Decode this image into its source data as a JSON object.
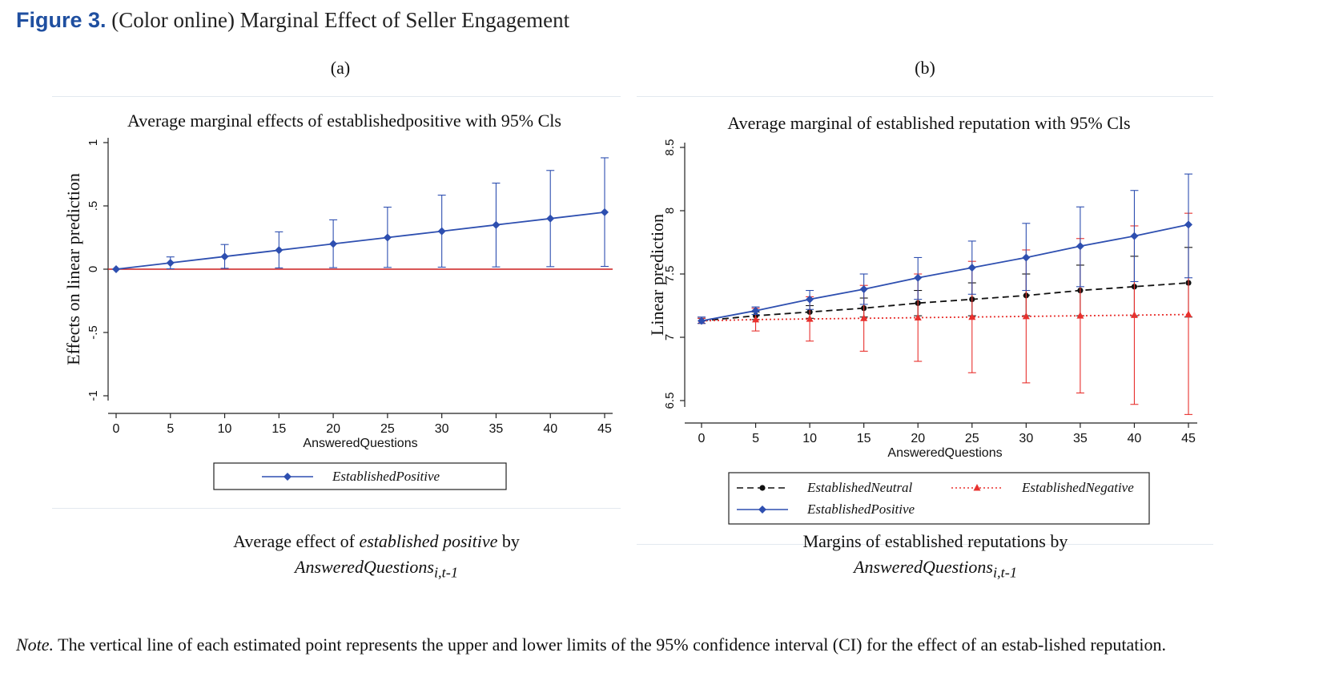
{
  "figure": {
    "label": "Figure 3.",
    "caption": "(Color online) Marginal Effect of Seller Engagement"
  },
  "panels": [
    {
      "letter": "(a)",
      "caption_prefix": "Average effect of ",
      "caption_italic": "established positive",
      "caption_suffix": " by",
      "caption_line2": "AnsweredQuestions",
      "caption_sub": "i,t-1"
    },
    {
      "letter": "(b)",
      "caption_prefix": "Margins of established reputations by",
      "caption_italic": "",
      "caption_suffix": "",
      "caption_line2": "AnsweredQuestions",
      "caption_sub": "i,t-1"
    }
  ],
  "note": {
    "label": "Note.",
    "text": " The vertical line of each estimated point represents the upper and lower limits of the 95% confidence interval (CI) for the effect of an estab-lished reputation."
  },
  "colors": {
    "blue": "#2e4fb0",
    "red": "#e8312e",
    "black": "#111111",
    "zero_line": "#cc1f1f",
    "grid": "#e3e9ef"
  },
  "chart_data": [
    {
      "type": "line",
      "title": "Average marginal effects of establishedpositive with 95% Cls",
      "xlabel": "AnsweredQuestions",
      "ylabel": "Effects on linear prediction",
      "xlim": [
        0,
        45
      ],
      "ylim": [
        -1,
        1
      ],
      "xticks": [
        0,
        5,
        10,
        15,
        20,
        25,
        30,
        35,
        40,
        45
      ],
      "yticks": [
        -1,
        -0.5,
        0,
        0.5,
        1
      ],
      "ytick_labels": [
        "-1",
        "-.5",
        "0",
        ".5",
        "1"
      ],
      "reference_line": 0,
      "legend_position": "bottom",
      "series": [
        {
          "name": "EstablishedPositive",
          "color": "#2e4fb0",
          "marker": "diamond",
          "dash": "solid",
          "x": [
            0,
            5,
            10,
            15,
            20,
            25,
            30,
            35,
            40,
            45
          ],
          "y": [
            0,
            0.05,
            0.1,
            0.15,
            0.2,
            0.25,
            0.3,
            0.35,
            0.4,
            0.45
          ],
          "lower": [
            0,
            0.003,
            0.007,
            0.01,
            0.012,
            0.014,
            0.016,
            0.018,
            0.02,
            0.022
          ],
          "upper": [
            0,
            0.097,
            0.195,
            0.295,
            0.39,
            0.49,
            0.585,
            0.68,
            0.78,
            0.88
          ]
        }
      ]
    },
    {
      "type": "line",
      "title": "Average marginal of established reputation with 95% Cls",
      "xlabel": "AnsweredQuestions",
      "ylabel": "Linear prediction",
      "xlim": [
        0,
        45
      ],
      "ylim": [
        6.5,
        8.5
      ],
      "xticks": [
        0,
        5,
        10,
        15,
        20,
        25,
        30,
        35,
        40,
        45
      ],
      "yticks": [
        6.5,
        7,
        7.5,
        8,
        8.5
      ],
      "ytick_labels": [
        "6.5",
        "7",
        "7.5",
        "8",
        "8.5"
      ],
      "legend_position": "bottom",
      "series": [
        {
          "name": "EstablishedNeutral",
          "color": "#111111",
          "marker": "circle",
          "dash": "dashed",
          "x": [
            0,
            5,
            10,
            15,
            20,
            25,
            30,
            35,
            40,
            45
          ],
          "y": [
            7.13,
            7.17,
            7.2,
            7.23,
            7.27,
            7.3,
            7.33,
            7.37,
            7.4,
            7.43
          ],
          "lower": [
            7.11,
            7.14,
            7.15,
            7.16,
            7.17,
            7.17,
            7.17,
            7.17,
            7.17,
            7.16
          ],
          "upper": [
            7.15,
            7.2,
            7.25,
            7.31,
            7.37,
            7.43,
            7.5,
            7.57,
            7.64,
            7.71
          ]
        },
        {
          "name": "EstablishedNegative",
          "color": "#e8312e",
          "marker": "triangle",
          "dash": "dotted",
          "x": [
            0,
            5,
            10,
            15,
            20,
            25,
            30,
            35,
            40,
            45
          ],
          "y": [
            7.13,
            7.14,
            7.145,
            7.15,
            7.155,
            7.16,
            7.165,
            7.17,
            7.175,
            7.18
          ],
          "lower": [
            7.11,
            7.05,
            6.97,
            6.89,
            6.81,
            6.72,
            6.64,
            6.56,
            6.47,
            6.39
          ],
          "upper": [
            7.15,
            7.23,
            7.32,
            7.41,
            7.5,
            7.6,
            7.69,
            7.78,
            7.88,
            7.98
          ]
        },
        {
          "name": "EstablishedPositive",
          "color": "#2e4fb0",
          "marker": "diamond",
          "dash": "solid",
          "x": [
            0,
            5,
            10,
            15,
            20,
            25,
            30,
            35,
            40,
            45
          ],
          "y": [
            7.13,
            7.21,
            7.3,
            7.38,
            7.47,
            7.55,
            7.63,
            7.72,
            7.8,
            7.89
          ],
          "lower": [
            7.11,
            7.18,
            7.22,
            7.26,
            7.3,
            7.34,
            7.37,
            7.4,
            7.44,
            7.47
          ],
          "upper": [
            7.16,
            7.24,
            7.37,
            7.5,
            7.63,
            7.76,
            7.9,
            8.03,
            8.16,
            8.29
          ]
        }
      ]
    }
  ]
}
